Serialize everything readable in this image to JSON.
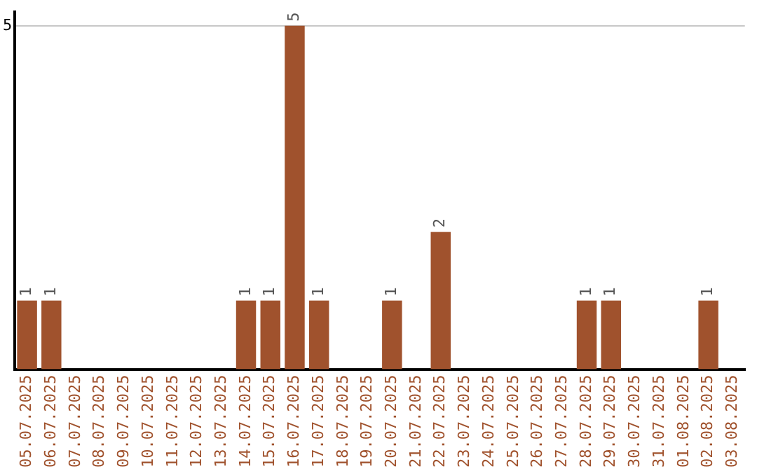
{
  "chart_data": {
    "type": "bar",
    "categories": [
      "05.07.2025",
      "06.07.2025",
      "07.07.2025",
      "08.07.2025",
      "09.07.2025",
      "10.07.2025",
      "11.07.2025",
      "12.07.2025",
      "13.07.2025",
      "14.07.2025",
      "15.07.2025",
      "16.07.2025",
      "17.07.2025",
      "18.07.2025",
      "19.07.2025",
      "20.07.2025",
      "21.07.2025",
      "22.07.2025",
      "23.07.2025",
      "24.07.2025",
      "25.07.2025",
      "26.07.2025",
      "27.07.2025",
      "28.07.2025",
      "29.07.2025",
      "30.07.2025",
      "31.07.2025",
      "01.08.2025",
      "02.08.2025",
      "03.08.2025"
    ],
    "values": [
      1,
      1,
      0,
      0,
      0,
      0,
      0,
      0,
      0,
      1,
      1,
      5,
      1,
      0,
      0,
      1,
      0,
      2,
      0,
      0,
      0,
      0,
      0,
      1,
      1,
      0,
      0,
      0,
      1,
      0
    ],
    "value_labels": [
      "1",
      "1",
      null,
      null,
      null,
      null,
      null,
      null,
      null,
      "1",
      "1",
      "5",
      "1",
      null,
      null,
      "1",
      null,
      "2",
      null,
      null,
      null,
      null,
      null,
      "1",
      "1",
      null,
      null,
      null,
      "1",
      null
    ],
    "color": "#a0522d",
    "ylim": [
      0,
      5.2
    ],
    "yticks": [
      5
    ],
    "grid": "y",
    "legend": false
  }
}
